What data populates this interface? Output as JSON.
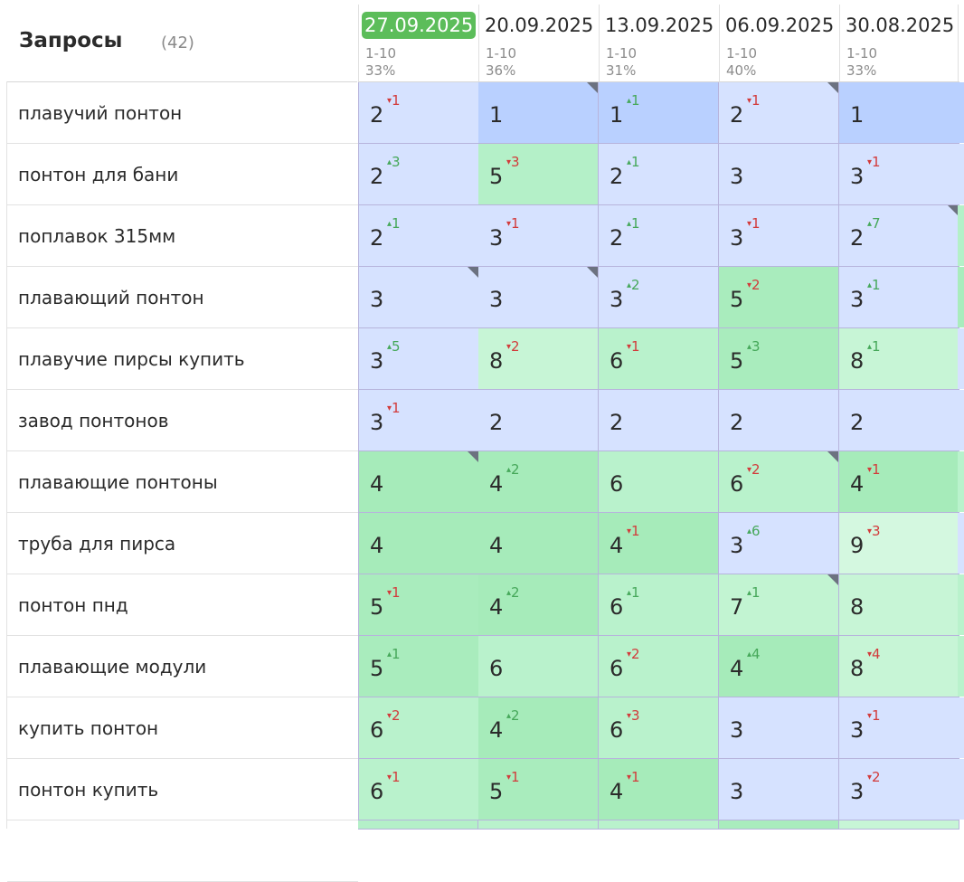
{
  "header": {
    "title": "Запросы",
    "count": "(42)"
  },
  "columns": [
    {
      "date": "27.09.2025",
      "range": "1-10",
      "pct": "33%",
      "active": true
    },
    {
      "date": "20.09.2025",
      "range": "1-10",
      "pct": "36%",
      "active": false
    },
    {
      "date": "13.09.2025",
      "range": "1-10",
      "pct": "31%",
      "active": false
    },
    {
      "date": "06.09.2025",
      "range": "1-10",
      "pct": "40%",
      "active": false
    },
    {
      "date": "30.08.2025",
      "range": "1-10",
      "pct": "33%",
      "active": false
    }
  ],
  "rows": [
    {
      "query": "плавучий понтон",
      "cells": [
        {
          "value": "2",
          "delta": "1",
          "dir": "down",
          "color": "#d6e2ff",
          "mark": false
        },
        {
          "value": "1",
          "delta": "",
          "dir": "",
          "color": "#b9d0ff",
          "mark": true
        },
        {
          "value": "1",
          "delta": "1",
          "dir": "up",
          "color": "#b9d0ff",
          "mark": false
        },
        {
          "value": "2",
          "delta": "1",
          "dir": "down",
          "color": "#d6e2ff",
          "mark": true
        },
        {
          "value": "1",
          "delta": "",
          "dir": "",
          "color": "#b9d0ff",
          "mark": false
        }
      ],
      "edge": "#b9d0ff"
    },
    {
      "query": "понтон для бани",
      "cells": [
        {
          "value": "2",
          "delta": "3",
          "dir": "up",
          "color": "#d6e2ff",
          "mark": false
        },
        {
          "value": "5",
          "delta": "3",
          "dir": "down",
          "color": "#b4f0c8",
          "mark": false
        },
        {
          "value": "2",
          "delta": "1",
          "dir": "up",
          "color": "#d6e2ff",
          "mark": false
        },
        {
          "value": "3",
          "delta": "",
          "dir": "",
          "color": "#d6e2ff",
          "mark": false
        },
        {
          "value": "3",
          "delta": "1",
          "dir": "down",
          "color": "#d6e2ff",
          "mark": false
        }
      ],
      "edge": "#d6e2ff"
    },
    {
      "query": "поплавок 315мм",
      "cells": [
        {
          "value": "2",
          "delta": "1",
          "dir": "up",
          "color": "#d6e2ff",
          "mark": false
        },
        {
          "value": "3",
          "delta": "1",
          "dir": "down",
          "color": "#d6e2ff",
          "mark": false
        },
        {
          "value": "2",
          "delta": "1",
          "dir": "up",
          "color": "#d6e2ff",
          "mark": false
        },
        {
          "value": "3",
          "delta": "1",
          "dir": "down",
          "color": "#d6e2ff",
          "mark": false
        },
        {
          "value": "2",
          "delta": "7",
          "dir": "up",
          "color": "#d6e2ff",
          "mark": true
        }
      ],
      "edge": "#b4f0c8"
    },
    {
      "query": "плавающий понтон",
      "cells": [
        {
          "value": "3",
          "delta": "",
          "dir": "",
          "color": "#d6e2ff",
          "mark": true
        },
        {
          "value": "3",
          "delta": "",
          "dir": "",
          "color": "#d6e2ff",
          "mark": true
        },
        {
          "value": "3",
          "delta": "2",
          "dir": "up",
          "color": "#d6e2ff",
          "mark": false
        },
        {
          "value": "5",
          "delta": "2",
          "dir": "down",
          "color": "#a9ecbd",
          "mark": false
        },
        {
          "value": "3",
          "delta": "1",
          "dir": "up",
          "color": "#d6e2ff",
          "mark": false
        }
      ],
      "edge": "#a9ecbd"
    },
    {
      "query": "плавучие пирсы купить",
      "cells": [
        {
          "value": "3",
          "delta": "5",
          "dir": "up",
          "color": "#d6e2ff",
          "mark": false
        },
        {
          "value": "8",
          "delta": "2",
          "dir": "down",
          "color": "#c7f5d6",
          "mark": false
        },
        {
          "value": "6",
          "delta": "1",
          "dir": "down",
          "color": "#b9f2cc",
          "mark": false
        },
        {
          "value": "5",
          "delta": "3",
          "dir": "up",
          "color": "#a9ecbd",
          "mark": false
        },
        {
          "value": "8",
          "delta": "1",
          "dir": "up",
          "color": "#c7f5d6",
          "mark": false
        }
      ],
      "edge": "#d6e2ff"
    },
    {
      "query": "завод понтонов",
      "cells": [
        {
          "value": "3",
          "delta": "1",
          "dir": "down",
          "color": "#d6e2ff",
          "mark": false
        },
        {
          "value": "2",
          "delta": "",
          "dir": "",
          "color": "#d6e2ff",
          "mark": false
        },
        {
          "value": "2",
          "delta": "",
          "dir": "",
          "color": "#d6e2ff",
          "mark": false
        },
        {
          "value": "2",
          "delta": "",
          "dir": "",
          "color": "#d6e2ff",
          "mark": false
        },
        {
          "value": "2",
          "delta": "",
          "dir": "",
          "color": "#d6e2ff",
          "mark": false
        }
      ],
      "edge": "#d6e2ff"
    },
    {
      "query": "плавающие понтоны",
      "cells": [
        {
          "value": "4",
          "delta": "",
          "dir": "",
          "color": "#a6ebba",
          "mark": true
        },
        {
          "value": "4",
          "delta": "2",
          "dir": "up",
          "color": "#a6ebba",
          "mark": false
        },
        {
          "value": "6",
          "delta": "",
          "dir": "",
          "color": "#b9f2cc",
          "mark": false
        },
        {
          "value": "6",
          "delta": "2",
          "dir": "down",
          "color": "#b9f2cc",
          "mark": true
        },
        {
          "value": "4",
          "delta": "1",
          "dir": "down",
          "color": "#a6ebba",
          "mark": false
        }
      ],
      "edge": "#b9f2cc"
    },
    {
      "query": "труба для пирса",
      "cells": [
        {
          "value": "4",
          "delta": "",
          "dir": "",
          "color": "#a6ebba",
          "mark": false
        },
        {
          "value": "4",
          "delta": "",
          "dir": "",
          "color": "#a6ebba",
          "mark": false
        },
        {
          "value": "4",
          "delta": "1",
          "dir": "down",
          "color": "#a6ebba",
          "mark": false
        },
        {
          "value": "3",
          "delta": "6",
          "dir": "up",
          "color": "#d6e2ff",
          "mark": false
        },
        {
          "value": "9",
          "delta": "3",
          "dir": "down",
          "color": "#d4f8e0",
          "mark": false
        }
      ],
      "edge": "#d6e2ff"
    },
    {
      "query": "понтон пнд",
      "cells": [
        {
          "value": "5",
          "delta": "1",
          "dir": "down",
          "color": "#a9ecbd",
          "mark": false
        },
        {
          "value": "4",
          "delta": "2",
          "dir": "up",
          "color": "#a6ebba",
          "mark": false
        },
        {
          "value": "6",
          "delta": "1",
          "dir": "up",
          "color": "#b9f2cc",
          "mark": false
        },
        {
          "value": "7",
          "delta": "1",
          "dir": "up",
          "color": "#c2f4d2",
          "mark": true
        },
        {
          "value": "8",
          "delta": "",
          "dir": "",
          "color": "#c7f5d6",
          "mark": false
        }
      ],
      "edge": "#b9f2cc"
    },
    {
      "query": "плавающие модули",
      "cells": [
        {
          "value": "5",
          "delta": "1",
          "dir": "up",
          "color": "#a9ecbd",
          "mark": false
        },
        {
          "value": "6",
          "delta": "",
          "dir": "",
          "color": "#b9f2cc",
          "mark": false
        },
        {
          "value": "6",
          "delta": "2",
          "dir": "down",
          "color": "#b9f2cc",
          "mark": false
        },
        {
          "value": "4",
          "delta": "4",
          "dir": "up",
          "color": "#a6ebba",
          "mark": false
        },
        {
          "value": "8",
          "delta": "4",
          "dir": "down",
          "color": "#c7f5d6",
          "mark": false
        }
      ],
      "edge": "#b9f2cc"
    },
    {
      "query": "купить понтон",
      "cells": [
        {
          "value": "6",
          "delta": "2",
          "dir": "down",
          "color": "#b9f2cc",
          "mark": false
        },
        {
          "value": "4",
          "delta": "2",
          "dir": "up",
          "color": "#a6ebba",
          "mark": false
        },
        {
          "value": "6",
          "delta": "3",
          "dir": "down",
          "color": "#b9f2cc",
          "mark": false
        },
        {
          "value": "3",
          "delta": "",
          "dir": "",
          "color": "#d6e2ff",
          "mark": false
        },
        {
          "value": "3",
          "delta": "1",
          "dir": "down",
          "color": "#d6e2ff",
          "mark": false
        }
      ],
      "edge": "#d6e2ff"
    },
    {
      "query": "понтон купить",
      "cells": [
        {
          "value": "6",
          "delta": "1",
          "dir": "down",
          "color": "#b9f2cc",
          "mark": false
        },
        {
          "value": "5",
          "delta": "1",
          "dir": "down",
          "color": "#a9ecbd",
          "mark": false
        },
        {
          "value": "4",
          "delta": "1",
          "dir": "down",
          "color": "#a6ebba",
          "mark": false
        },
        {
          "value": "3",
          "delta": "",
          "dir": "",
          "color": "#d6e2ff",
          "mark": false
        },
        {
          "value": "3",
          "delta": "2",
          "dir": "down",
          "color": "#d6e2ff",
          "mark": false
        }
      ],
      "edge": "#d6e2ff"
    }
  ],
  "next_row_colors": [
    "#b4f0c8",
    "#b9f2cc",
    "#b9f2cc",
    "#a9ecbd",
    "#c7f5d6"
  ]
}
